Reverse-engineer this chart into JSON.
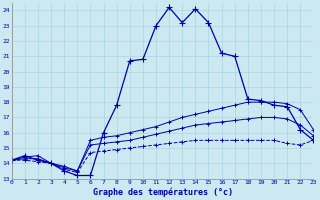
{
  "xlabel": "Graphe des températures (°c)",
  "background_color": "#cce8f0",
  "line_color": "#0000aa",
  "xlim": [
    0,
    23
  ],
  "ylim": [
    13,
    24.5
  ],
  "xticks": [
    0,
    1,
    2,
    3,
    4,
    5,
    6,
    7,
    8,
    9,
    10,
    11,
    12,
    13,
    14,
    15,
    16,
    17,
    18,
    19,
    20,
    21,
    22,
    23
  ],
  "yticks": [
    13,
    14,
    15,
    16,
    17,
    18,
    19,
    20,
    21,
    22,
    23,
    24
  ],
  "main_line": {
    "x": [
      0,
      1,
      2,
      3,
      4,
      5,
      6,
      7,
      8,
      9,
      10,
      11,
      12,
      13,
      14,
      15,
      16,
      17,
      18,
      19,
      20,
      21,
      22,
      23
    ],
    "y": [
      14.2,
      14.5,
      14.2,
      14.0,
      13.5,
      13.2,
      13.2,
      16.0,
      17.8,
      20.7,
      20.8,
      23.0,
      24.2,
      23.2,
      24.1,
      23.2,
      21.2,
      21.0,
      18.2,
      18.1,
      17.8,
      17.7,
      16.2,
      15.5
    ]
  },
  "max_line": {
    "x": [
      0,
      1,
      2,
      3,
      4,
      5,
      6,
      7,
      8,
      9,
      10,
      11,
      12,
      13,
      14,
      15,
      16,
      17,
      18,
      19,
      20,
      21,
      22,
      23
    ],
    "y": [
      14.2,
      14.4,
      14.5,
      14.0,
      13.8,
      13.5,
      15.5,
      15.7,
      15.8,
      16.0,
      16.2,
      16.4,
      16.7,
      17.0,
      17.2,
      17.4,
      17.6,
      17.8,
      18.0,
      18.0,
      18.0,
      17.9,
      17.5,
      16.2
    ]
  },
  "avg_line": {
    "x": [
      0,
      1,
      2,
      3,
      4,
      5,
      6,
      7,
      8,
      9,
      10,
      11,
      12,
      13,
      14,
      15,
      16,
      17,
      18,
      19,
      20,
      21,
      22,
      23
    ],
    "y": [
      14.2,
      14.3,
      14.3,
      14.0,
      13.7,
      13.5,
      15.2,
      15.3,
      15.4,
      15.5,
      15.7,
      15.9,
      16.1,
      16.3,
      16.5,
      16.6,
      16.7,
      16.8,
      16.9,
      17.0,
      17.0,
      16.9,
      16.5,
      15.8
    ]
  },
  "min_line": {
    "x": [
      0,
      1,
      2,
      3,
      4,
      5,
      6,
      7,
      8,
      9,
      10,
      11,
      12,
      13,
      14,
      15,
      16,
      17,
      18,
      19,
      20,
      21,
      22,
      23
    ],
    "y": [
      14.2,
      14.2,
      14.1,
      14.0,
      13.6,
      13.4,
      14.7,
      14.8,
      14.9,
      15.0,
      15.1,
      15.2,
      15.3,
      15.4,
      15.5,
      15.5,
      15.5,
      15.5,
      15.5,
      15.5,
      15.5,
      15.3,
      15.2,
      15.5
    ]
  }
}
